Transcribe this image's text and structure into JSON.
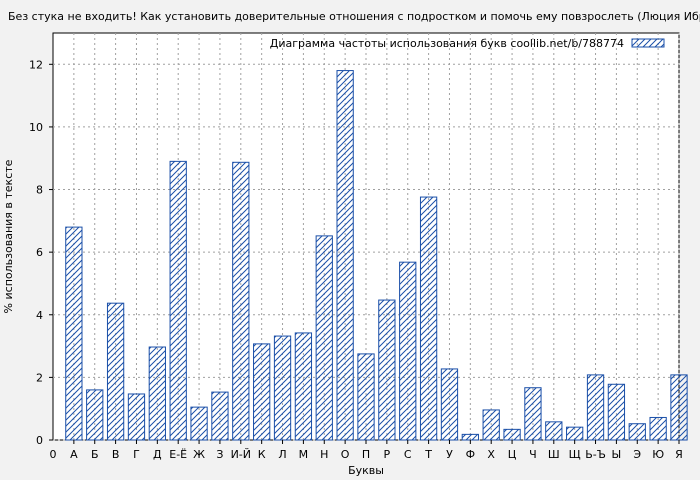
{
  "chart_data": {
    "type": "bar",
    "title": "Без стука не входить! Как установить доверительные отношения с подростком и помочь ему повзрослеть (Люция Ибрагимо",
    "xlabel": "Буквы",
    "ylabel": "% использования в тексте",
    "legend": "Диаграмма частоты использования букв coollib.net/b/788774",
    "legend_position": "top-right",
    "grid": true,
    "ylim": [
      0,
      13
    ],
    "yticks": [
      "0",
      "2",
      "4",
      "6",
      "8",
      "10",
      "12"
    ],
    "x_origin_label": "0",
    "categories": [
      "А",
      "Б",
      "В",
      "Г",
      "Д",
      "Е-Ё",
      "Ж",
      "З",
      "И-Й",
      "К",
      "Л",
      "М",
      "Н",
      "О",
      "П",
      "Р",
      "С",
      "Т",
      "У",
      "Ф",
      "Х",
      "Ц",
      "Ч",
      "Ш",
      "Щ",
      "Ь-Ъ",
      "Ы",
      "Э",
      "Ю",
      "Я"
    ],
    "values": [
      6.8,
      1.6,
      4.37,
      1.47,
      2.97,
      8.9,
      1.05,
      1.53,
      8.87,
      3.07,
      3.32,
      3.42,
      6.52,
      11.8,
      2.75,
      4.47,
      5.68,
      7.76,
      2.27,
      0.18,
      0.96,
      0.34,
      1.67,
      0.58,
      0.41,
      2.08,
      1.78,
      0.52,
      0.72,
      2.08
    ],
    "colors": {
      "bar_stroke": "#1a4fa8",
      "background": "#f2f2f2",
      "plot_bg": "#ffffff",
      "grid": "#a0a0a0"
    }
  }
}
